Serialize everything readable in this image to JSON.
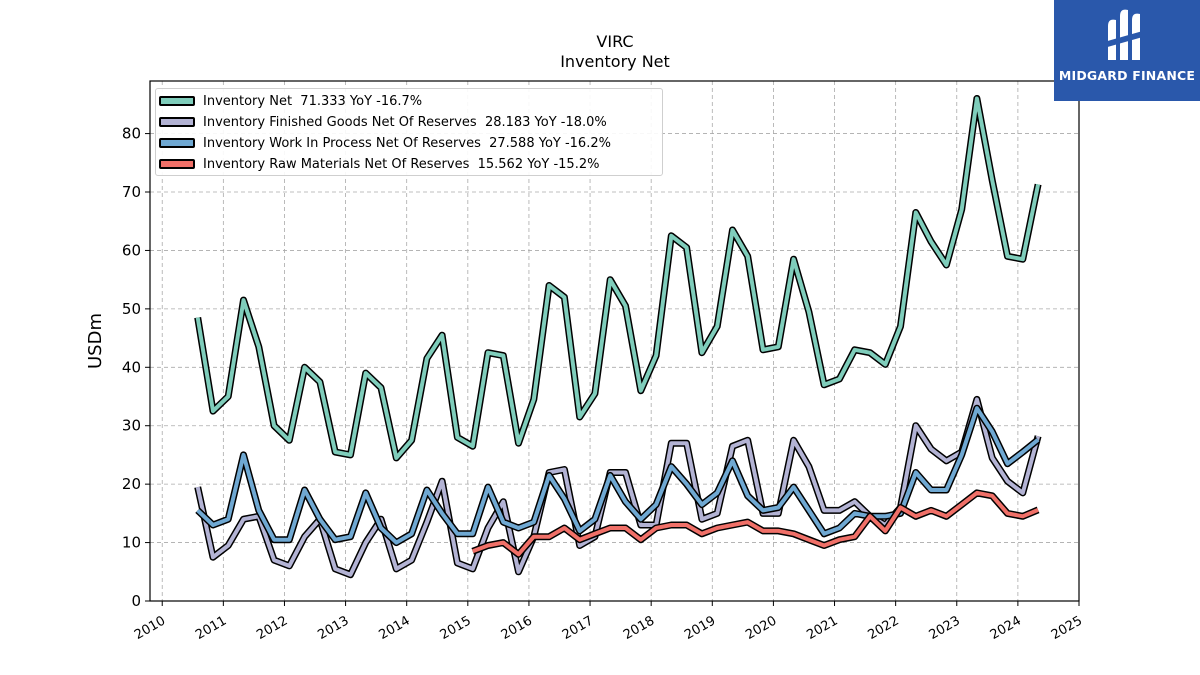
{
  "logo": {
    "text": "MIDGARD FINANCE"
  },
  "chart_data": {
    "type": "line",
    "title": "VIRC",
    "subtitle": "Inventory Net",
    "ylabel": "USDm",
    "xlabel": "",
    "xlim": [
      2009.8,
      2025.0
    ],
    "ylim": [
      0,
      89
    ],
    "x_ticks": [
      "2010",
      "2011",
      "2012",
      "2013",
      "2014",
      "2015",
      "2016",
      "2017",
      "2018",
      "2019",
      "2020",
      "2021",
      "2022",
      "2023",
      "2024",
      "2025"
    ],
    "y_ticks": [
      0,
      10,
      20,
      30,
      40,
      50,
      60,
      70,
      80
    ],
    "grid": true,
    "legend_position": "top-left",
    "series": [
      {
        "name": "Inventory Net",
        "legend_label": "Inventory Net  71.333 YoY -16.7%",
        "color": "#7fcdbb",
        "x": [
          2010.58,
          2010.83,
          2011.08,
          2011.33,
          2011.58,
          2011.83,
          2012.08,
          2012.33,
          2012.58,
          2012.83,
          2013.08,
          2013.33,
          2013.58,
          2013.83,
          2014.08,
          2014.33,
          2014.58,
          2014.83,
          2015.08,
          2015.33,
          2015.58,
          2015.83,
          2016.08,
          2016.33,
          2016.58,
          2016.83,
          2017.08,
          2017.33,
          2017.58,
          2017.83,
          2018.08,
          2018.33,
          2018.58,
          2018.83,
          2019.08,
          2019.33,
          2019.58,
          2019.83,
          2020.08,
          2020.33,
          2020.58,
          2020.83,
          2021.08,
          2021.33,
          2021.58,
          2021.83,
          2022.08,
          2022.33,
          2022.58,
          2022.83,
          2023.08,
          2023.33,
          2023.58,
          2023.83,
          2024.08,
          2024.33
        ],
        "values": [
          48.5,
          32.5,
          35,
          51.5,
          43.5,
          30,
          27.5,
          40,
          37.5,
          25.5,
          25,
          39,
          36.5,
          24.5,
          27.5,
          41.5,
          45.5,
          28,
          26.5,
          42.5,
          42,
          27,
          34.5,
          54,
          52,
          31.5,
          35.5,
          55,
          50.5,
          36,
          42,
          62.5,
          60.5,
          42.5,
          47,
          63.5,
          59,
          43,
          43.5,
          58.5,
          49.5,
          37,
          38,
          43,
          42.5,
          40.5,
          47,
          66.5,
          61.5,
          57.5,
          67,
          86,
          72,
          59,
          58.5,
          71.3
        ]
      },
      {
        "name": "Inventory Finished Goods Net Of Reserves",
        "legend_label": "Inventory Finished Goods Net Of Reserves  28.183 YoY -18.0%",
        "color": "#b3b3d4",
        "x": [
          2010.58,
          2010.83,
          2011.08,
          2011.33,
          2011.58,
          2011.83,
          2012.08,
          2012.33,
          2012.58,
          2012.83,
          2013.08,
          2013.33,
          2013.58,
          2013.83,
          2014.08,
          2014.33,
          2014.58,
          2014.83,
          2015.08,
          2015.33,
          2015.58,
          2015.83,
          2016.08,
          2016.33,
          2016.58,
          2016.83,
          2017.08,
          2017.33,
          2017.58,
          2017.83,
          2018.08,
          2018.33,
          2018.58,
          2018.83,
          2019.08,
          2019.33,
          2019.58,
          2019.83,
          2020.08,
          2020.33,
          2020.58,
          2020.83,
          2021.08,
          2021.33,
          2021.58,
          2021.83,
          2022.08,
          2022.33,
          2022.58,
          2022.83,
          2023.08,
          2023.33,
          2023.58,
          2023.83,
          2024.08,
          2024.33
        ],
        "values": [
          19.5,
          7.5,
          9.5,
          14,
          14.5,
          7,
          6,
          11,
          14,
          5.5,
          4.5,
          10,
          14,
          5.5,
          7,
          13.5,
          20.5,
          6.5,
          5.5,
          12.5,
          17,
          5,
          11,
          22,
          22.5,
          9.5,
          11,
          22,
          22,
          13,
          13,
          27,
          27,
          14,
          15,
          26.5,
          27.5,
          15,
          15,
          27.5,
          23,
          15.5,
          15.5,
          17,
          14.5,
          13,
          16,
          30,
          26,
          24,
          25.5,
          34.5,
          24.5,
          20.5,
          18.5,
          28.2
        ]
      },
      {
        "name": "Inventory Work In Process Net Of Reserves",
        "legend_label": "Inventory Work In Process Net Of Reserves  27.588 YoY -16.2%",
        "color": "#6fa8d2",
        "x": [
          2010.58,
          2010.83,
          2011.08,
          2011.33,
          2011.58,
          2011.83,
          2012.08,
          2012.33,
          2012.58,
          2012.83,
          2013.08,
          2013.33,
          2013.58,
          2013.83,
          2014.08,
          2014.33,
          2014.58,
          2014.83,
          2015.08,
          2015.33,
          2015.58,
          2015.83,
          2016.08,
          2016.33,
          2016.58,
          2016.83,
          2017.08,
          2017.33,
          2017.58,
          2017.83,
          2018.08,
          2018.33,
          2018.58,
          2018.83,
          2019.08,
          2019.33,
          2019.58,
          2019.83,
          2020.08,
          2020.33,
          2020.58,
          2020.83,
          2021.08,
          2021.33,
          2021.58,
          2021.83,
          2022.08,
          2022.33,
          2022.58,
          2022.83,
          2023.08,
          2023.33,
          2023.58,
          2023.83,
          2024.08,
          2024.33
        ],
        "values": [
          15.5,
          13,
          14,
          25,
          15.5,
          10.5,
          10.5,
          19,
          14,
          10.5,
          11,
          18.5,
          12.5,
          10,
          11.5,
          19,
          15,
          11.5,
          11.5,
          19.5,
          13.5,
          12.5,
          13.5,
          21.5,
          17.5,
          12,
          14,
          21.5,
          17,
          14,
          16.5,
          23,
          20,
          16.5,
          18.5,
          24,
          18,
          15.5,
          16,
          19.5,
          15.5,
          11.5,
          12.5,
          15,
          14.5,
          14.5,
          15,
          22,
          19,
          19,
          25,
          33,
          29,
          23.5,
          25.5,
          27.6
        ]
      },
      {
        "name": "Inventory Raw Materials Net Of Reserves",
        "legend_label": "Inventory Raw Materials Net Of Reserves  15.562 YoY -15.2%",
        "color": "#f07068",
        "x": [
          2015.08,
          2015.33,
          2015.58,
          2015.83,
          2016.08,
          2016.33,
          2016.58,
          2016.83,
          2017.08,
          2017.33,
          2017.58,
          2017.83,
          2018.08,
          2018.33,
          2018.58,
          2018.83,
          2019.08,
          2019.33,
          2019.58,
          2019.83,
          2020.08,
          2020.33,
          2020.58,
          2020.83,
          2021.08,
          2021.33,
          2021.58,
          2021.83,
          2022.08,
          2022.33,
          2022.58,
          2022.83,
          2023.08,
          2023.33,
          2023.58,
          2023.83,
          2024.08,
          2024.33
        ],
        "values": [
          8.5,
          9.5,
          10,
          8,
          11,
          11,
          12.5,
          10.5,
          11.5,
          12.5,
          12.5,
          10.5,
          12.5,
          13,
          13,
          11.5,
          12.5,
          13,
          13.5,
          12,
          12,
          11.5,
          10.5,
          9.5,
          10.5,
          11,
          14.5,
          12,
          16,
          14.5,
          15.5,
          14.5,
          16.5,
          18.5,
          18,
          15,
          14.5,
          15.6
        ]
      }
    ]
  }
}
